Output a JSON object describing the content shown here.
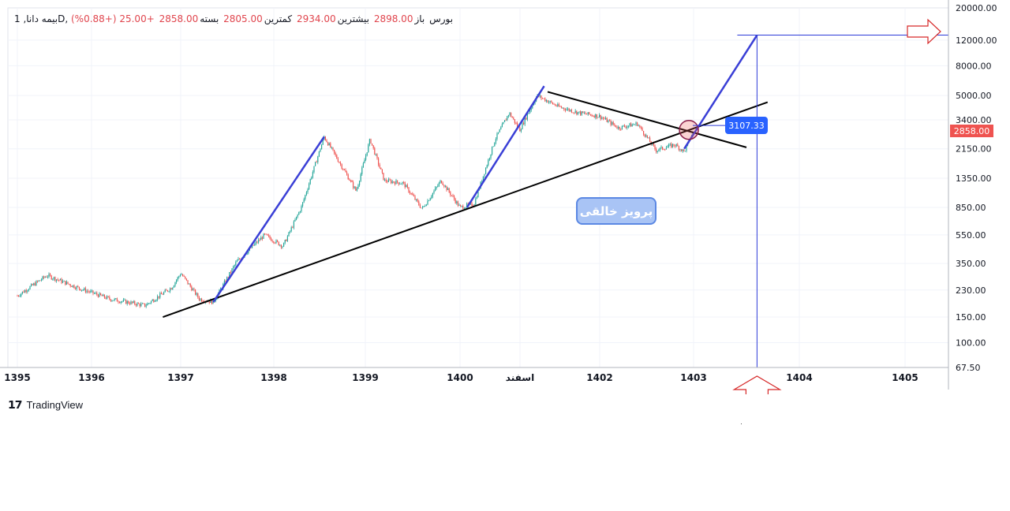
{
  "header": {
    "symbol": "بیمه دانا, 1D, بورس",
    "open_label": "باز",
    "open_value": "2898.00",
    "high_label": "بیشترین",
    "high_value": "2934.00",
    "low_label": "کمترین",
    "low_value": "2805.00",
    "close_label": "بسته",
    "close_value": "2858.00",
    "change": "+25.00 (+0.88%)"
  },
  "watermark_text": "پرویز خالقی",
  "callout_value": "3107.33",
  "last_price_tag": "2858.00",
  "brand": "TradingView",
  "colors": {
    "up": "#26a69a",
    "down": "#ef5350",
    "blue_line": "#3a3fd6",
    "trend_line": "#000000",
    "marker_line": "#2d3bd8",
    "arrow": "#d62828"
  },
  "chart_data": {
    "type": "candlestick",
    "title": "",
    "xlabel": "",
    "ylabel": "",
    "y_scale": "log",
    "ylim": [
      67.5,
      20000
    ],
    "y_ticks": [
      "20000.00",
      "12000.00",
      "8000.00",
      "5000.00",
      "3400.00",
      "2150.00",
      "1350.00",
      "850.00",
      "550.00",
      "350.00",
      "230.00",
      "150.00",
      "100.00",
      "67.50"
    ],
    "x_ticks": [
      "1395",
      "1396",
      "1397",
      "1398",
      "1399",
      "1400",
      "اسفند",
      "1402",
      "1403",
      "1404",
      "1405"
    ],
    "price_path": [
      {
        "x": 1395.0,
        "y": 210
      },
      {
        "x": 1395.4,
        "y": 290
      },
      {
        "x": 1395.8,
        "y": 240
      },
      {
        "x": 1396.2,
        "y": 200
      },
      {
        "x": 1396.6,
        "y": 180
      },
      {
        "x": 1396.9,
        "y": 240
      },
      {
        "x": 1397.0,
        "y": 300
      },
      {
        "x": 1397.2,
        "y": 200
      },
      {
        "x": 1397.35,
        "y": 190
      },
      {
        "x": 1397.6,
        "y": 360
      },
      {
        "x": 1397.9,
        "y": 550
      },
      {
        "x": 1398.1,
        "y": 460
      },
      {
        "x": 1398.3,
        "y": 850
      },
      {
        "x": 1398.55,
        "y": 2600
      },
      {
        "x": 1398.75,
        "y": 1600
      },
      {
        "x": 1398.9,
        "y": 1100
      },
      {
        "x": 1399.05,
        "y": 2500
      },
      {
        "x": 1399.2,
        "y": 1300
      },
      {
        "x": 1399.4,
        "y": 1250
      },
      {
        "x": 1399.6,
        "y": 830
      },
      {
        "x": 1399.8,
        "y": 1300
      },
      {
        "x": 1400.0,
        "y": 850
      },
      {
        "x": 1400.2,
        "y": 900
      },
      {
        "x": 1400.5,
        "y": 2500
      },
      {
        "x": 1400.7,
        "y": 3800
      },
      {
        "x": 1400.85,
        "y": 2900
      },
      {
        "x": 1401.1,
        "y": 5000
      },
      {
        "x": 1401.4,
        "y": 4200
      },
      {
        "x": 1401.7,
        "y": 3800
      },
      {
        "x": 1402.0,
        "y": 3600
      },
      {
        "x": 1402.2,
        "y": 3000
      },
      {
        "x": 1402.4,
        "y": 3200
      },
      {
        "x": 1402.6,
        "y": 2100
      },
      {
        "x": 1402.8,
        "y": 2300
      },
      {
        "x": 1402.9,
        "y": 2050
      },
      {
        "x": 1403.0,
        "y": 2858
      }
    ],
    "annotations": {
      "rising_trendline": {
        "from": {
          "x": 1396.8,
          "y": 150
        },
        "to": {
          "x": 1403.7,
          "y": 4500
        }
      },
      "falling_trendline": {
        "from": {
          "x": 1401.25,
          "y": 5300
        },
        "to": {
          "x": 1403.5,
          "y": 2200
        }
      },
      "impulse_lines": [
        {
          "from": {
            "x": 1397.35,
            "y": 190
          },
          "to": {
            "x": 1398.55,
            "y": 2600
          }
        },
        {
          "from": {
            "x": 1400.1,
            "y": 850
          },
          "to": {
            "x": 1401.2,
            "y": 5800
          }
        },
        {
          "from": {
            "x": 1402.9,
            "y": 2150
          },
          "to": {
            "x": 1403.6,
            "y": 13000
          }
        }
      ],
      "target_level": 13000,
      "target_time": 1403.6,
      "intersection": {
        "x": 1402.95,
        "y": 2900
      }
    }
  }
}
